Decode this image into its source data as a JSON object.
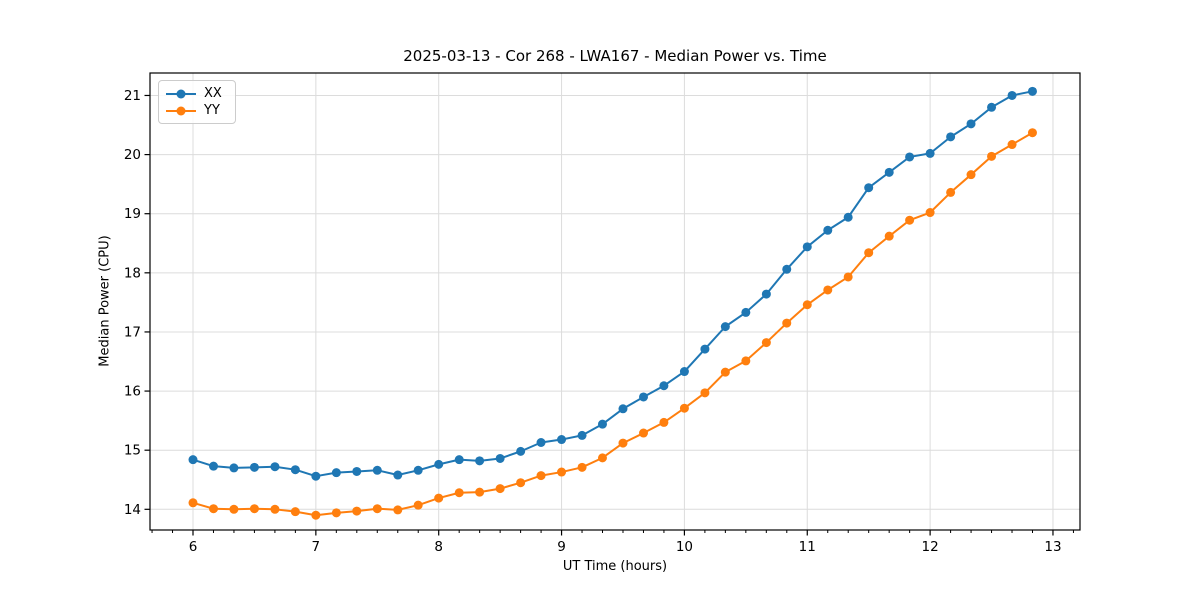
{
  "title": "2025-03-13 - Cor 268 - LWA167 - Median Power vs. Time",
  "chart_data": {
    "type": "line",
    "title": "2025-03-13 - Cor 268 - LWA167 - Median Power vs. Time",
    "xlabel": "UT Time (hours)",
    "ylabel": "Median Power (CPU)",
    "xlim": [
      5.65,
      13.22
    ],
    "ylim": [
      13.65,
      21.38
    ],
    "x_ticks": [
      6,
      7,
      8,
      9,
      10,
      11,
      12,
      13
    ],
    "y_ticks": [
      14,
      15,
      16,
      17,
      18,
      19,
      20,
      21
    ],
    "x_minor_interval": 0.16667,
    "grid": true,
    "grid_color": "#dcdcdc",
    "legend_position": "upper left",
    "marker": "o",
    "x": [
      6.0,
      6.167,
      6.333,
      6.5,
      6.667,
      6.833,
      7.0,
      7.167,
      7.333,
      7.5,
      7.667,
      7.833,
      8.0,
      8.167,
      8.333,
      8.5,
      8.667,
      8.833,
      9.0,
      9.167,
      9.333,
      9.5,
      9.667,
      9.833,
      10.0,
      10.167,
      10.333,
      10.5,
      10.667,
      10.833,
      11.0,
      11.167,
      11.333,
      11.5,
      11.667,
      11.833,
      12.0,
      12.167,
      12.333,
      12.5,
      12.667,
      12.833
    ],
    "series": [
      {
        "name": "XX",
        "color": "#1f77b4",
        "values": [
          14.84,
          14.73,
          14.7,
          14.71,
          14.72,
          14.67,
          14.56,
          14.62,
          14.64,
          14.66,
          14.58,
          14.66,
          14.76,
          14.84,
          14.82,
          14.86,
          14.98,
          15.13,
          15.18,
          15.25,
          15.44,
          15.7,
          15.9,
          16.09,
          16.33,
          16.71,
          17.09,
          17.33,
          17.64,
          18.06,
          18.44,
          18.72,
          18.94,
          19.44,
          19.7,
          19.96,
          20.02,
          20.3,
          20.52,
          20.8,
          21.0,
          21.07
        ]
      },
      {
        "name": "YY",
        "color": "#ff7f0e",
        "values": [
          14.11,
          14.01,
          14.0,
          14.01,
          14.0,
          13.96,
          13.9,
          13.94,
          13.97,
          14.01,
          13.99,
          14.07,
          14.19,
          14.28,
          14.29,
          14.35,
          14.45,
          14.57,
          14.63,
          14.71,
          14.87,
          15.12,
          15.29,
          15.47,
          15.71,
          15.97,
          16.32,
          16.51,
          16.82,
          17.15,
          17.46,
          17.71,
          17.93,
          18.34,
          18.62,
          18.89,
          19.02,
          19.36,
          19.66,
          19.97,
          20.17,
          20.37
        ]
      }
    ]
  }
}
